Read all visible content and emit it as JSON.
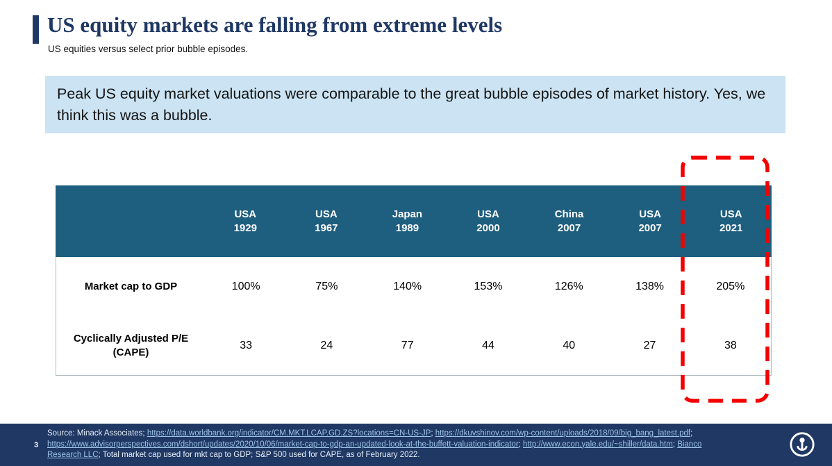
{
  "colors": {
    "title_navy": "#1F3864",
    "table_header_teal": "#1E5E7E",
    "callout_background": "#CBE3F2",
    "highlight_red": "#F40000",
    "footer_navy": "#1F3864",
    "footer_link": "#9DC3E6"
  },
  "header": {
    "title": "US equity markets are falling from extreme levels",
    "subtitle": "US equities versus select prior bubble episodes."
  },
  "callout": {
    "text": "Peak US equity market valuations were comparable to the great bubble episodes of market history. Yes, we think this was a bubble."
  },
  "table": {
    "columns": [
      {
        "line1": "USA",
        "line2": "1929"
      },
      {
        "line1": "USA",
        "line2": "1967"
      },
      {
        "line1": "Japan",
        "line2": "1989"
      },
      {
        "line1": "USA",
        "line2": "2000"
      },
      {
        "line1": "China",
        "line2": "2007"
      },
      {
        "line1": "USA",
        "line2": "2007"
      },
      {
        "line1": "USA",
        "line2": "2021"
      }
    ],
    "rows": [
      {
        "label": "Market cap to GDP",
        "values": [
          "100%",
          "75%",
          "140%",
          "153%",
          "126%",
          "138%",
          "205%"
        ]
      },
      {
        "label": "Cyclically Adjusted P/E (CAPE)",
        "values": [
          "33",
          "24",
          "77",
          "44",
          "40",
          "27",
          "38"
        ]
      }
    ],
    "highlighted_column": "USA 2021"
  },
  "footer": {
    "page_number": "3",
    "segments": [
      {
        "text": "Source: Minack Associates; ",
        "link": false
      },
      {
        "text": "https://data.worldbank.org/indicator/CM.MKT.LCAP.GD.ZS?locations=CN-US-JP",
        "link": true
      },
      {
        "text": "; ",
        "link": false
      },
      {
        "text": "https://dkuvshinov.com/wp-content/uploads/2018/09/big_bang_latest.pdf",
        "link": true
      },
      {
        "text": "; ",
        "link": false
      },
      {
        "text": "https://www.advisorperspectives.com/dshort/updates/2020/10/06/market-cap-to-gdp-an-updated-look-at-the-buffett-valuation-indicator",
        "link": true
      },
      {
        "text": "; ",
        "link": false
      },
      {
        "text": "http://www.econ.yale.edu/~shiller/data.htm",
        "link": true
      },
      {
        "text": "; ",
        "link": false
      },
      {
        "text": "Bianco Research LLC",
        "link": true
      },
      {
        "text": "; Total market cap used for mkt cap to GDP; S&P 500 used for CAPE, as of February 2022.",
        "link": false
      }
    ]
  }
}
